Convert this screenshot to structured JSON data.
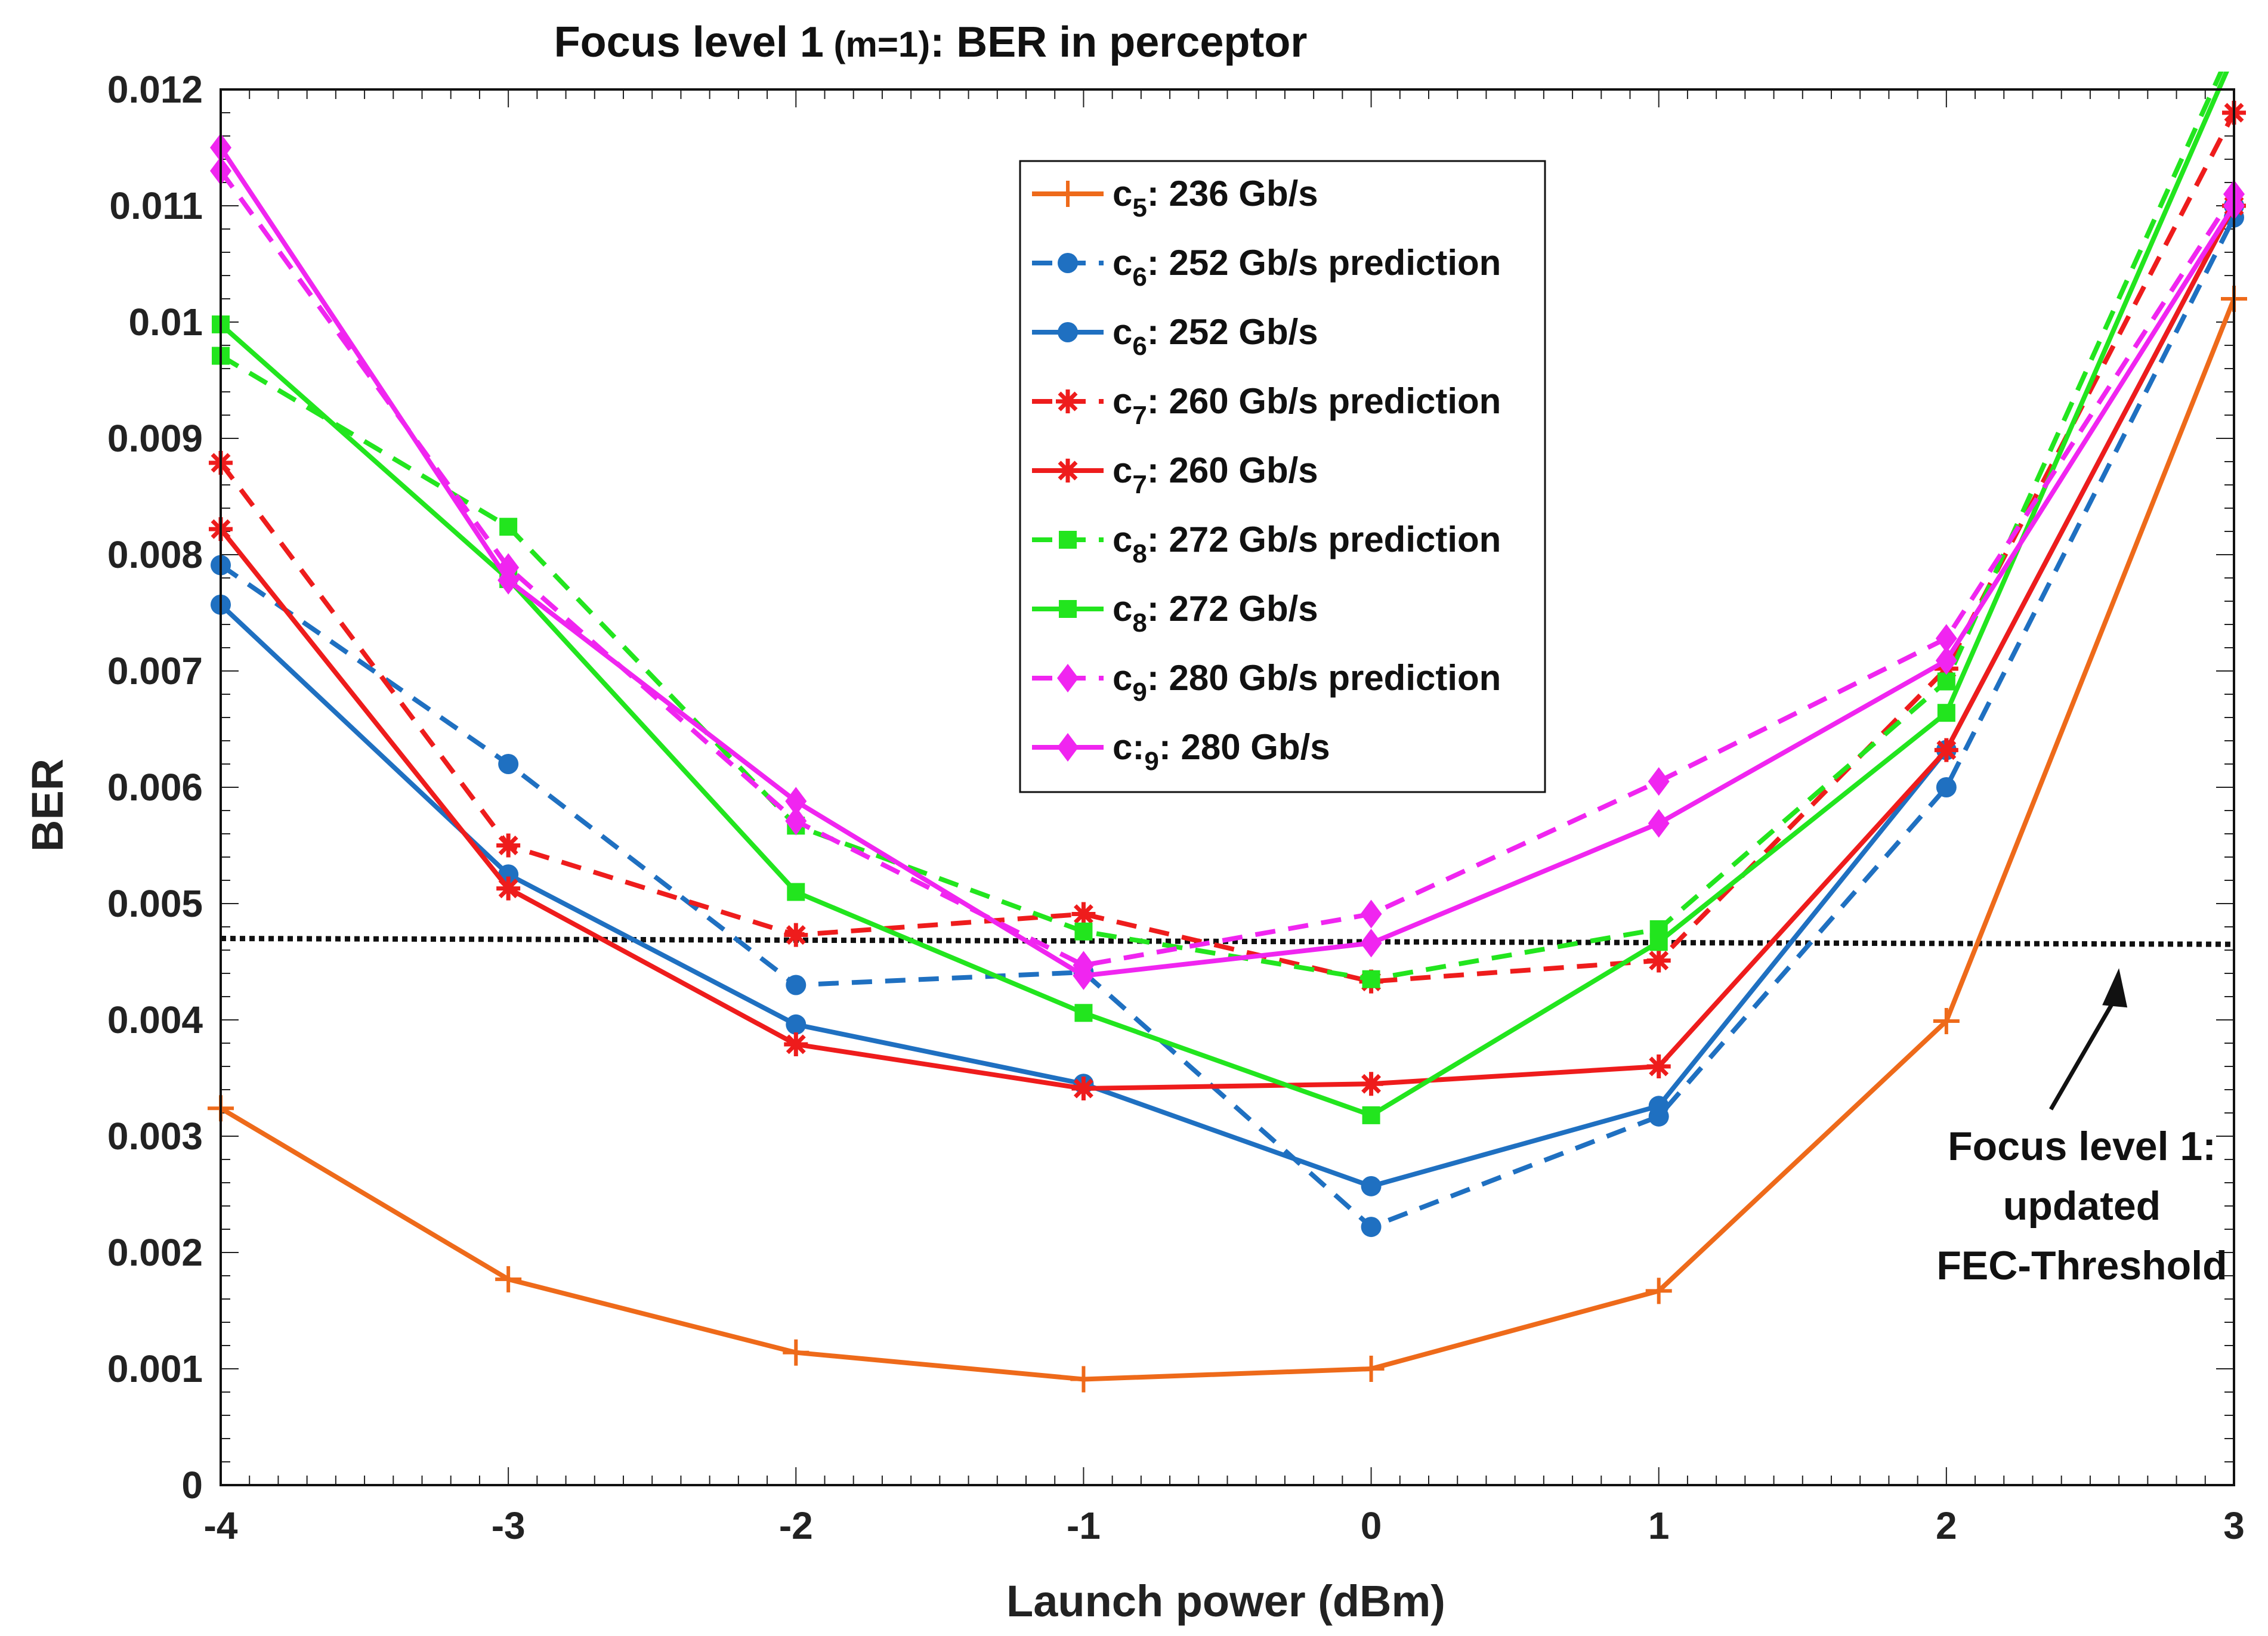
{
  "chart_data": {
    "type": "line",
    "title_part1": "Focus level ",
    "title_part2": "1",
    "title_part3": " (m=1)",
    "title_part4": ": BER in perceptor",
    "xlabel": "Launch power (dBm)",
    "ylabel": "BER",
    "x": [
      -4,
      -3,
      -2,
      -1,
      0,
      1,
      2,
      3
    ],
    "xlim": [
      -4,
      3
    ],
    "ylim": [
      0,
      0.012
    ],
    "x_tick_labels": [
      "-4",
      "-3",
      "-2",
      "-1",
      "0",
      "1",
      "2",
      "3"
    ],
    "y_ticks": [
      0,
      0.001,
      0.002,
      0.003,
      0.004,
      0.005,
      0.006,
      0.007,
      0.008,
      0.009,
      0.01,
      0.011,
      0.012
    ],
    "y_tick_labels": [
      "0",
      "0.001",
      "0.002",
      "0.003",
      "0.004",
      "0.005",
      "0.006",
      "0.007",
      "0.008",
      "0.009",
      "0.01",
      "0.011",
      "0.012"
    ],
    "grid": "minor ticks only",
    "legend_position": "top-center",
    "series": [
      {
        "id": "c5",
        "name_pre": "c",
        "name_sub": "5",
        "name_post": ": 236 Gb/s",
        "color": "#EE6A1A",
        "dash": "solid",
        "marker": "plus",
        "values": [
          0.00324,
          0.00177,
          0.00114,
          0.00091,
          0.001,
          0.00167,
          0.00399,
          0.0102
        ]
      },
      {
        "id": "c6p",
        "name_pre": "c",
        "name_sub": "6",
        "name_post": ": 252 Gb/s prediction",
        "color": "#1F70C1",
        "dash": "dashed",
        "marker": "circle",
        "values": [
          0.00791,
          0.0062,
          0.0043,
          0.00441,
          0.00222,
          0.00317,
          0.006,
          0.0109
        ]
      },
      {
        "id": "c6",
        "name_pre": "c",
        "name_sub": "6",
        "name_post": ": 252 Gb/s",
        "color": "#1F70C1",
        "dash": "solid",
        "marker": "circle",
        "values": [
          0.00757,
          0.00525,
          0.00396,
          0.00345,
          0.00257,
          0.00326,
          0.00632,
          0.011
        ]
      },
      {
        "id": "c7p",
        "name_pre": "c",
        "name_sub": "7",
        "name_post": ": 260 Gb/s prediction",
        "color": "#EE1C1C",
        "dash": "dashed",
        "marker": "asterisk",
        "values": [
          0.00879,
          0.0055,
          0.00473,
          0.00491,
          0.00433,
          0.00451,
          0.00702,
          0.0118
        ]
      },
      {
        "id": "c7",
        "name_pre": "c",
        "name_sub": "7",
        "name_post": ": 260 Gb/s",
        "color": "#EE1C1C",
        "dash": "solid",
        "marker": "asterisk",
        "values": [
          0.00822,
          0.00513,
          0.00379,
          0.00341,
          0.00345,
          0.0036,
          0.00632,
          0.011
        ]
      },
      {
        "id": "c8p",
        "name_pre": "c",
        "name_sub": "8",
        "name_post": ": 272 Gb/s prediction",
        "color": "#22E51E",
        "dash": "dashed",
        "marker": "square",
        "values": [
          0.00971,
          0.00824,
          0.00567,
          0.00476,
          0.00435,
          0.00478,
          0.00691,
          0.0124
        ]
      },
      {
        "id": "c8",
        "name_pre": "c",
        "name_sub": "8",
        "name_post": ": 272 Gb/s",
        "color": "#22E51E",
        "dash": "solid",
        "marker": "square",
        "values": [
          0.00998,
          0.00779,
          0.0051,
          0.00406,
          0.00318,
          0.00467,
          0.00664,
          0.0123
        ]
      },
      {
        "id": "c9p",
        "name_pre": "c",
        "name_sub": "9",
        "name_post": ": 280 Gb/s prediction",
        "color": "#F025F0",
        "dash": "dashed",
        "marker": "diamond",
        "values": [
          0.0113,
          0.00789,
          0.00571,
          0.00447,
          0.00491,
          0.00605,
          0.00728,
          0.0111
        ]
      },
      {
        "id": "c9",
        "name_pre": "c:",
        "name_sub": "9",
        "name_post": ": 280 Gb/s",
        "color": "#F025F0",
        "dash": "solid",
        "marker": "diamond",
        "values": [
          0.0115,
          0.00778,
          0.00588,
          0.00438,
          0.00466,
          0.00569,
          0.00709,
          0.011
        ]
      }
    ],
    "threshold": {
      "y_start": 0.0047,
      "y_end": 0.00465,
      "color": "#111111",
      "label_lines": [
        "Focus level 1:",
        "updated",
        "FEC-Threshold"
      ],
      "arrow_tip_x": 2.6
    }
  }
}
